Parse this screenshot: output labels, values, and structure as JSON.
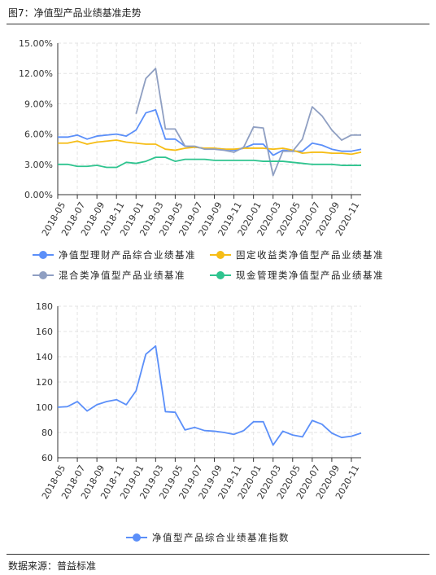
{
  "figure": {
    "title": "图7：净值型产品业绩基准走势",
    "source": "数据来源：普益标准"
  },
  "colors": {
    "series1": "#5b8ff9",
    "series2": "#f6bd16",
    "series3": "#8f9fc2",
    "series4": "#2fc48f",
    "grid": "#e3e3e3",
    "axis": "#333333"
  },
  "chart_data": [
    {
      "type": "line",
      "title": "",
      "xlabel": "",
      "ylabel": "",
      "ylim": [
        0,
        15
      ],
      "y_ticks": [
        "0.00%",
        "3.00%",
        "6.00%",
        "9.00%",
        "12.00%",
        "15.00%"
      ],
      "categories": [
        "2018-05",
        "2018-06",
        "2018-07",
        "2018-08",
        "2018-09",
        "2018-10",
        "2018-11",
        "2018-12",
        "2019-01",
        "2019-02",
        "2019-03",
        "2019-04",
        "2019-05",
        "2019-06",
        "2019-07",
        "2019-08",
        "2019-09",
        "2019-10",
        "2019-11",
        "2019-12",
        "2020-01",
        "2020-02",
        "2020-03",
        "2020-04",
        "2020-05",
        "2020-06",
        "2020-07",
        "2020-08",
        "2020-09",
        "2020-10",
        "2020-11",
        "2020-12"
      ],
      "x_tick_labels": [
        "2018-05",
        "2018-07",
        "2018-09",
        "2018-11",
        "2019-01",
        "2019-03",
        "2019-05",
        "2019-07",
        "2019-09",
        "2019-11",
        "2020-01",
        "2020-03",
        "2020-05",
        "2020-07",
        "2020-09",
        "2020-11"
      ],
      "grid": true,
      "legend_position": "bottom",
      "series": [
        {
          "name": "净值型理财产品综合业绩基准",
          "values": [
            5.7,
            5.7,
            5.9,
            5.5,
            5.8,
            5.9,
            6.0,
            5.8,
            6.4,
            8.1,
            8.4,
            5.5,
            5.5,
            4.8,
            4.7,
            4.6,
            4.6,
            4.5,
            4.4,
            4.6,
            5.0,
            5.0,
            3.9,
            4.4,
            4.3,
            4.3,
            5.1,
            4.9,
            4.5,
            4.3,
            4.3,
            4.5
          ]
        },
        {
          "name": "固定收益类净值型产品业绩基准",
          "values": [
            5.1,
            5.1,
            5.3,
            5.0,
            5.2,
            5.3,
            5.4,
            5.2,
            5.1,
            5.0,
            5.0,
            4.5,
            4.4,
            4.6,
            4.7,
            4.6,
            4.6,
            4.5,
            4.5,
            4.6,
            4.6,
            4.6,
            4.5,
            4.6,
            4.4,
            4.1,
            4.2,
            4.2,
            4.1,
            4.1,
            4.0,
            4.2
          ]
        },
        {
          "name": "混合类净值型产品业绩基准",
          "values": [
            null,
            null,
            null,
            null,
            null,
            null,
            null,
            null,
            8.0,
            11.5,
            12.5,
            6.5,
            6.5,
            4.8,
            4.8,
            4.5,
            4.5,
            4.4,
            4.2,
            4.7,
            6.7,
            6.6,
            1.9,
            4.3,
            4.3,
            5.5,
            8.7,
            7.8,
            6.4,
            5.4,
            5.9,
            5.9
          ]
        },
        {
          "name": "现金管理类净值型产品业绩基准",
          "values": [
            3.0,
            3.0,
            2.8,
            2.8,
            2.9,
            2.7,
            2.7,
            3.2,
            3.1,
            3.3,
            3.7,
            3.7,
            3.3,
            3.5,
            3.5,
            3.5,
            3.4,
            3.4,
            3.4,
            3.4,
            3.4,
            3.3,
            3.3,
            3.3,
            3.2,
            3.1,
            3.0,
            3.0,
            3.0,
            2.9,
            2.9,
            2.9
          ]
        }
      ]
    },
    {
      "type": "line",
      "title": "",
      "xlabel": "",
      "ylabel": "",
      "ylim": [
        60,
        180
      ],
      "y_ticks": [
        "60",
        "80",
        "100",
        "120",
        "140",
        "160",
        "180"
      ],
      "categories": [
        "2018-05",
        "2018-06",
        "2018-07",
        "2018-08",
        "2018-09",
        "2018-10",
        "2018-11",
        "2018-12",
        "2019-01",
        "2019-02",
        "2019-03",
        "2019-04",
        "2019-05",
        "2019-06",
        "2019-07",
        "2019-08",
        "2019-09",
        "2019-10",
        "2019-11",
        "2019-12",
        "2020-01",
        "2020-02",
        "2020-03",
        "2020-04",
        "2020-05",
        "2020-06",
        "2020-07",
        "2020-08",
        "2020-09",
        "2020-10",
        "2020-11",
        "2020-12"
      ],
      "x_tick_labels": [
        "2018-05",
        "2018-07",
        "2018-09",
        "2018-11",
        "2019-01",
        "2019-03",
        "2019-05",
        "2019-07",
        "2019-09",
        "2019-11",
        "2020-01",
        "2020-03",
        "2020-05",
        "2020-07",
        "2020-09",
        "2020-11"
      ],
      "grid": true,
      "legend_position": "bottom",
      "series": [
        {
          "name": "净值型产品综合业绩基准指数",
          "values": [
            100,
            100.5,
            104.5,
            97,
            102,
            104.5,
            106,
            102,
            113,
            142,
            148.5,
            96.5,
            96,
            82,
            84,
            81.5,
            81,
            80,
            78.5,
            81.5,
            88.5,
            88.5,
            70,
            81,
            78,
            76.5,
            89.5,
            86.5,
            79.5,
            76,
            77,
            79.5
          ]
        }
      ]
    }
  ]
}
